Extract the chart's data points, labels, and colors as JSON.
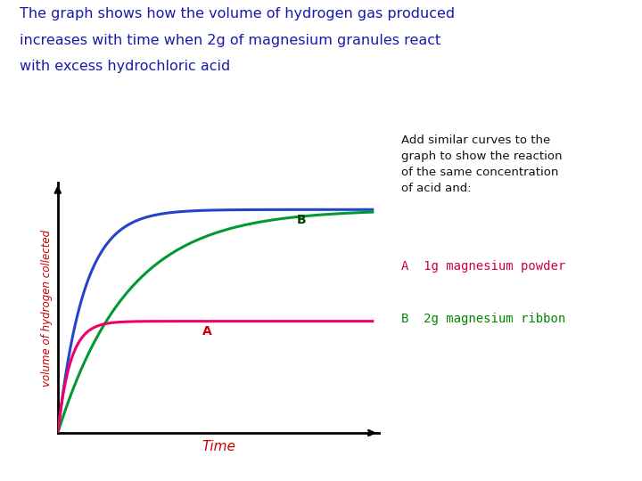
{
  "title_line1": "The graph shows how the volume of hydrogen gas produced",
  "title_line2": "increases with time when 2g of magnesium granules react",
  "title_line3": "with excess hydrochloric acid",
  "title_color": "#1a1aaa",
  "bg_color": "#ffffff",
  "ylabel": "volume of hydrogen collected",
  "xlabel": "Time",
  "xlabel_color": "#cc0000",
  "ylabel_color": "#cc0000",
  "annotation_text": "Add similar curves to the\ngraph to show the reaction\nof the same concentration\nof acid and:",
  "annotation_color": "#111111",
  "legend_A_text": "A  1g magnesium powder",
  "legend_B_text": "B  2g magnesium ribbon",
  "legend_A_color": "#cc0044",
  "legend_B_color": "#008800",
  "curve_blue_color": "#2244cc",
  "curve_green_color": "#009933",
  "curve_pink_color": "#ee0066",
  "label_A_color": "#cc0000",
  "label_B_color": "#004400",
  "curve_blue_k": 1.2,
  "curve_blue_plateau": 1.0,
  "curve_green_k": 0.45,
  "curve_green_plateau": 1.0,
  "curve_pink_k": 2.5,
  "curve_pink_plateau": 0.5
}
